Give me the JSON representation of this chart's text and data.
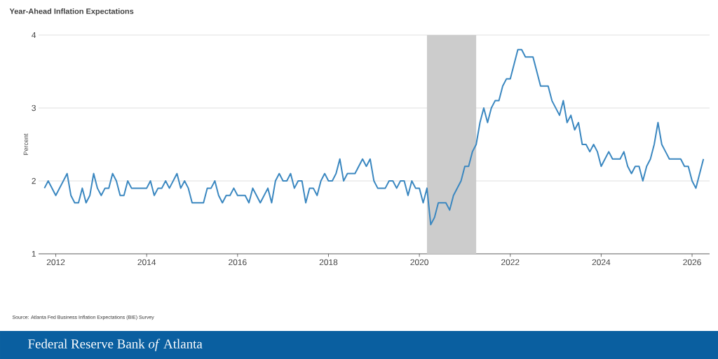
{
  "chart_data": {
    "type": "line",
    "title": "Year-Ahead Inflation Expectations",
    "ylabel": "Percent",
    "color": "#3a87c0",
    "x": [
      "2011-10",
      "2011-11",
      "2012-01",
      "2012-04",
      "2012-05",
      "2012-06",
      "2012-07",
      "2012-08",
      "2012-09",
      "2012-10",
      "2012-11",
      "2012-12",
      "2013-01",
      "2013-02",
      "2013-03",
      "2013-04",
      "2013-05",
      "2013-06",
      "2013-07",
      "2013-08",
      "2013-09",
      "2014-01",
      "2014-02",
      "2014-03",
      "2014-04",
      "2014-05",
      "2014-06",
      "2014-07",
      "2014-09",
      "2014-10",
      "2014-11",
      "2014-12",
      "2015-01",
      "2015-04",
      "2015-05",
      "2015-06",
      "2015-07",
      "2015-08",
      "2015-09",
      "2015-10",
      "2015-11",
      "2015-12",
      "2016-01",
      "2016-03",
      "2016-04",
      "2016-05",
      "2016-06",
      "2016-07",
      "2016-09",
      "2016-10",
      "2016-11",
      "2016-12",
      "2017-01",
      "2017-02",
      "2017-03",
      "2017-04",
      "2017-05",
      "2017-06",
      "2017-07",
      "2017-08",
      "2017-09",
      "2017-10",
      "2017-11",
      "2017-12",
      "2018-01",
      "2018-02",
      "2018-03",
      "2018-04",
      "2018-05",
      "2018-06",
      "2018-08",
      "2018-09",
      "2018-10",
      "2018-11",
      "2018-12",
      "2019-01",
      "2019-02",
      "2019-04",
      "2019-05",
      "2019-06",
      "2019-07",
      "2019-08",
      "2019-09",
      "2019-10",
      "2019-11",
      "2019-12",
      "2020-01",
      "2020-02",
      "2020-03",
      "2020-04",
      "2020-05",
      "2020-06",
      "2020-08",
      "2020-09",
      "2020-10",
      "2020-12",
      "2021-01",
      "2021-02",
      "2021-03",
      "2021-04",
      "2021-05",
      "2021-06",
      "2021-07",
      "2021-08",
      "2021-09",
      "2021-10",
      "2021-11",
      "2021-12",
      "2022-01",
      "2022-02",
      "2022-03",
      "2022-04",
      "2022-05",
      "2022-07",
      "2022-08",
      "2022-09",
      "2022-11",
      "2022-12",
      "2023-02",
      "2023-03",
      "2023-04",
      "2023-05",
      "2023-06",
      "2023-07",
      "2023-08",
      "2023-09",
      "2023-10",
      "2023-11",
      "2023-12",
      "2024-01",
      "2024-02",
      "2024-03",
      "2024-04",
      "2024-06",
      "2024-07",
      "2024-08",
      "2024-09",
      "2024-10",
      "2024-11",
      "2024-12",
      "2025-01",
      "2025-02",
      "2025-03",
      "2025-04",
      "2025-05",
      "2025-06",
      "2025-07",
      "2025-10",
      "2025-11",
      "2025-12",
      "2026-01",
      "2026-02",
      "2026-04"
    ],
    "values": [
      1.9,
      2.0,
      1.8,
      2.1,
      1.8,
      1.7,
      1.7,
      1.9,
      1.7,
      1.8,
      2.1,
      1.9,
      1.8,
      1.9,
      1.9,
      2.1,
      2.0,
      1.8,
      1.8,
      2.0,
      1.9,
      1.9,
      2.0,
      1.8,
      1.9,
      1.9,
      2.0,
      1.9,
      2.1,
      1.9,
      2.0,
      1.9,
      1.7,
      1.7,
      1.9,
      1.9,
      2.0,
      1.8,
      1.7,
      1.8,
      1.8,
      1.9,
      1.8,
      1.8,
      1.7,
      1.9,
      1.8,
      1.7,
      1.9,
      1.7,
      2.0,
      2.1,
      2.0,
      2.0,
      2.1,
      1.9,
      2.0,
      2.0,
      1.7,
      1.9,
      1.9,
      1.8,
      2.0,
      2.1,
      2.0,
      2.0,
      2.1,
      2.3,
      2.0,
      2.1,
      2.1,
      2.2,
      2.3,
      2.2,
      2.3,
      2.0,
      1.9,
      1.9,
      2.0,
      2.0,
      1.9,
      2.0,
      2.0,
      1.8,
      2.0,
      1.9,
      1.9,
      1.7,
      1.9,
      1.4,
      1.5,
      1.7,
      1.7,
      1.6,
      1.8,
      2.0,
      2.2,
      2.2,
      2.4,
      2.5,
      2.8,
      3.0,
      2.8,
      3.0,
      3.1,
      3.1,
      3.3,
      3.4,
      3.4,
      3.6,
      3.8,
      3.8,
      3.7,
      3.7,
      3.5,
      3.3,
      3.3,
      3.1,
      2.9,
      3.1,
      2.8,
      2.9,
      2.7,
      2.8,
      2.5,
      2.5,
      2.4,
      2.5,
      2.4,
      2.2,
      2.3,
      2.4,
      2.3,
      2.3,
      2.4,
      2.2,
      2.1,
      2.2,
      2.2,
      2.0,
      2.2,
      2.3,
      2.5,
      2.8,
      2.5,
      2.4,
      2.3,
      2.3,
      2.2,
      2.2,
      2.0,
      1.9,
      2.3
    ],
    "xlim": [
      "2011-08-15",
      "2026-05-20"
    ],
    "xticks": [
      {
        "value": "2012",
        "label": "2012"
      },
      {
        "value": "2014",
        "label": "2014"
      },
      {
        "value": "2016",
        "label": "2016"
      },
      {
        "value": "2018",
        "label": "2018"
      },
      {
        "value": "2020",
        "label": "2020"
      },
      {
        "value": "2022",
        "label": "2022"
      },
      {
        "value": "2024",
        "label": "2024"
      },
      {
        "value": "2026",
        "label": "2026"
      }
    ],
    "ylim": [
      1,
      4
    ],
    "yticks": [
      1,
      2,
      3,
      4
    ],
    "grid": "y",
    "bands": [
      {
        "axis": "x",
        "from": "2020-03",
        "to": "2021-04",
        "color": "#cccccc"
      }
    ],
    "annotations": [
      "Source: Atlanta Fed Business Inflation Expectations (BIE) Survey",
      "Federal Reserve Bank *of* Atlanta"
    ]
  }
}
